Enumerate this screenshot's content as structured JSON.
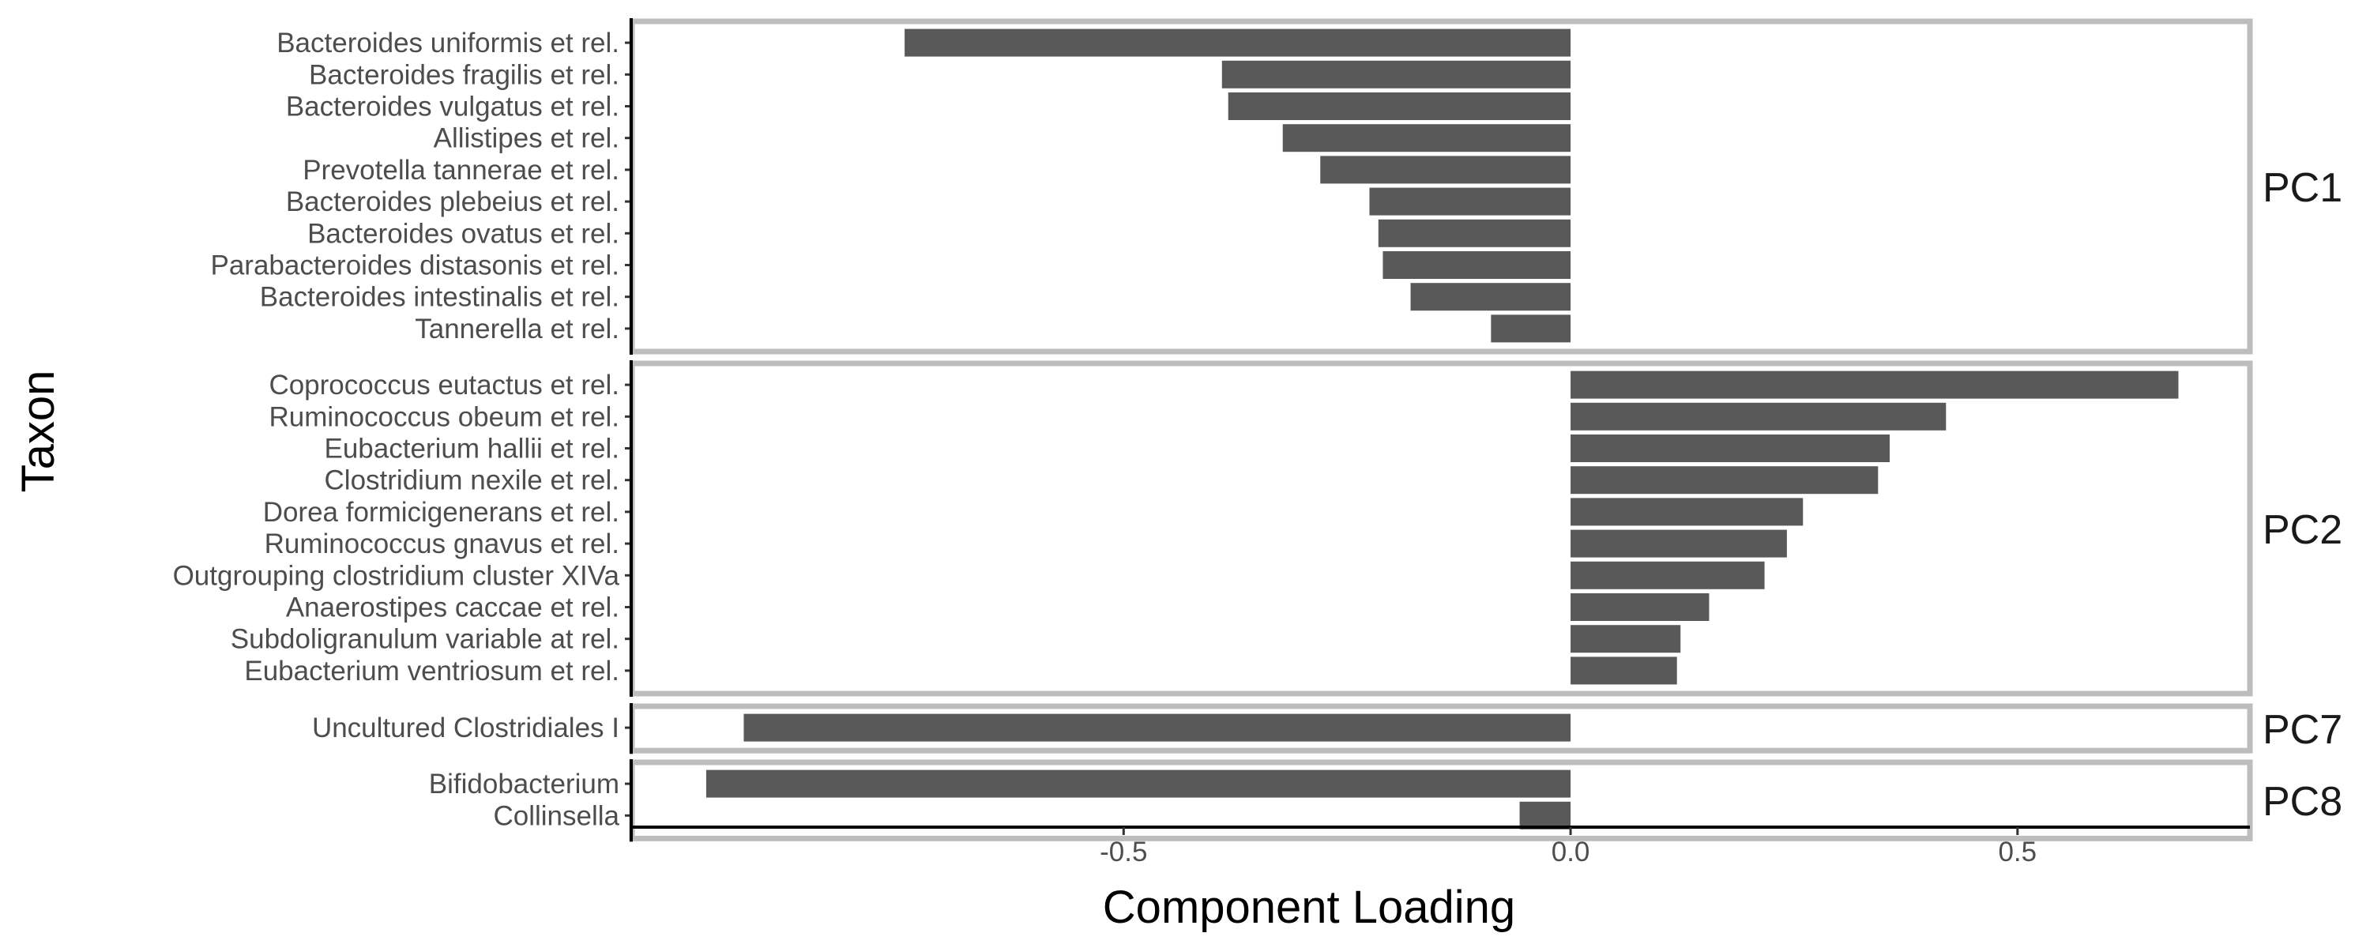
{
  "chart_data": {
    "type": "bar",
    "orientation": "horizontal",
    "xlabel": "Component Loading",
    "ylabel": "Taxon",
    "xlim": [
      -1.05,
      0.76
    ],
    "x_ticks": [
      -0.5,
      0.0,
      0.5
    ],
    "x_tick_labels": [
      "-0.5",
      "0.0",
      "0.5"
    ],
    "grid": false,
    "legend": "none",
    "bar_color": "#595959",
    "panel_border_color": "#bdbdbd",
    "facets": [
      {
        "label": "PC1",
        "categories": [
          "Bacteroides uniformis et rel.",
          "Bacteroides fragilis et rel.",
          "Bacteroides vulgatus et rel.",
          "Allistipes et rel.",
          "Prevotella tannerae et rel.",
          "Bacteroides plebeius et rel.",
          "Bacteroides ovatus et rel.",
          "Parabacteroides distasonis et rel.",
          "Bacteroides intestinalis et rel.",
          "Tannerella et rel."
        ],
        "values": [
          -0.745,
          -0.39,
          -0.383,
          -0.322,
          -0.28,
          -0.225,
          -0.215,
          -0.21,
          -0.179,
          -0.089
        ]
      },
      {
        "label": "PC2",
        "categories": [
          "Coprococcus eutactus et rel.",
          "Ruminococcus obeum et rel.",
          "Eubacterium hallii et rel.",
          "Clostridium nexile et rel.",
          "Dorea formicigenerans et rel.",
          "Ruminococcus gnavus et rel.",
          "Outgrouping clostridium cluster XIVa",
          "Anaerostipes caccae et rel.",
          "Subdoligranulum variable at rel.",
          "Eubacterium ventriosum et rel."
        ],
        "values": [
          0.68,
          0.42,
          0.357,
          0.344,
          0.26,
          0.242,
          0.217,
          0.155,
          0.123,
          0.119
        ]
      },
      {
        "label": "PC7",
        "categories": [
          "Uncultured Clostridiales I"
        ],
        "values": [
          -0.925
        ]
      },
      {
        "label": "PC8",
        "categories": [
          "Bifidobacterium",
          "Collinsella"
        ],
        "values": [
          -0.967,
          -0.057
        ]
      }
    ]
  }
}
